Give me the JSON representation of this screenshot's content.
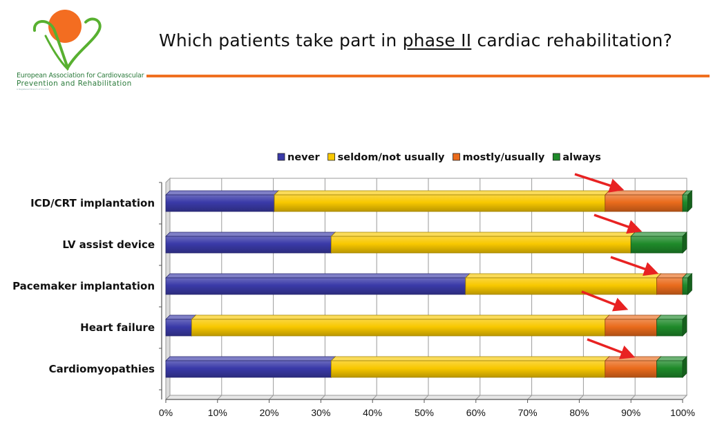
{
  "header": {
    "title_before": "Which patients take part in ",
    "title_underlined": "phase II",
    "title_after": " cardiac rehabilitation?",
    "accent_color": "#f07020"
  },
  "logo": {
    "line1": "European Association for Cardiovascular",
    "line2": "Prevention and Rehabilitation",
    "line3": "A Registered Branch of the ESC",
    "icon": "heart-person-logo"
  },
  "chart_data": {
    "type": "bar",
    "orientation": "horizontal",
    "stacked": "percent",
    "categories": [
      "ICD/CRT implantation",
      "LV assist device",
      "Pacemaker implantation",
      "Heart failure",
      "Cardiomyopathies"
    ],
    "series": [
      {
        "name": "never",
        "color": "#3a3aa8",
        "values": [
          21,
          32,
          58,
          5,
          32
        ]
      },
      {
        "name": "seldom/not usually",
        "color": "#f8c800",
        "values": [
          64,
          58,
          37,
          80,
          53
        ]
      },
      {
        "name": "mostly/usually",
        "color": "#ea6b1c",
        "values": [
          15,
          0,
          5,
          10,
          10
        ]
      },
      {
        "name": "always",
        "color": "#1f8a2a",
        "values": [
          1,
          10,
          1,
          5,
          5
        ]
      }
    ],
    "xticks": [
      "0%",
      "10%",
      "20%",
      "30%",
      "40%",
      "50%",
      "60%",
      "70%",
      "80%",
      "90%",
      "100%"
    ],
    "xlim": [
      0,
      100
    ],
    "legend": "top",
    "grid": true,
    "annotations": "red arrows pointing to the right end of each bar"
  }
}
